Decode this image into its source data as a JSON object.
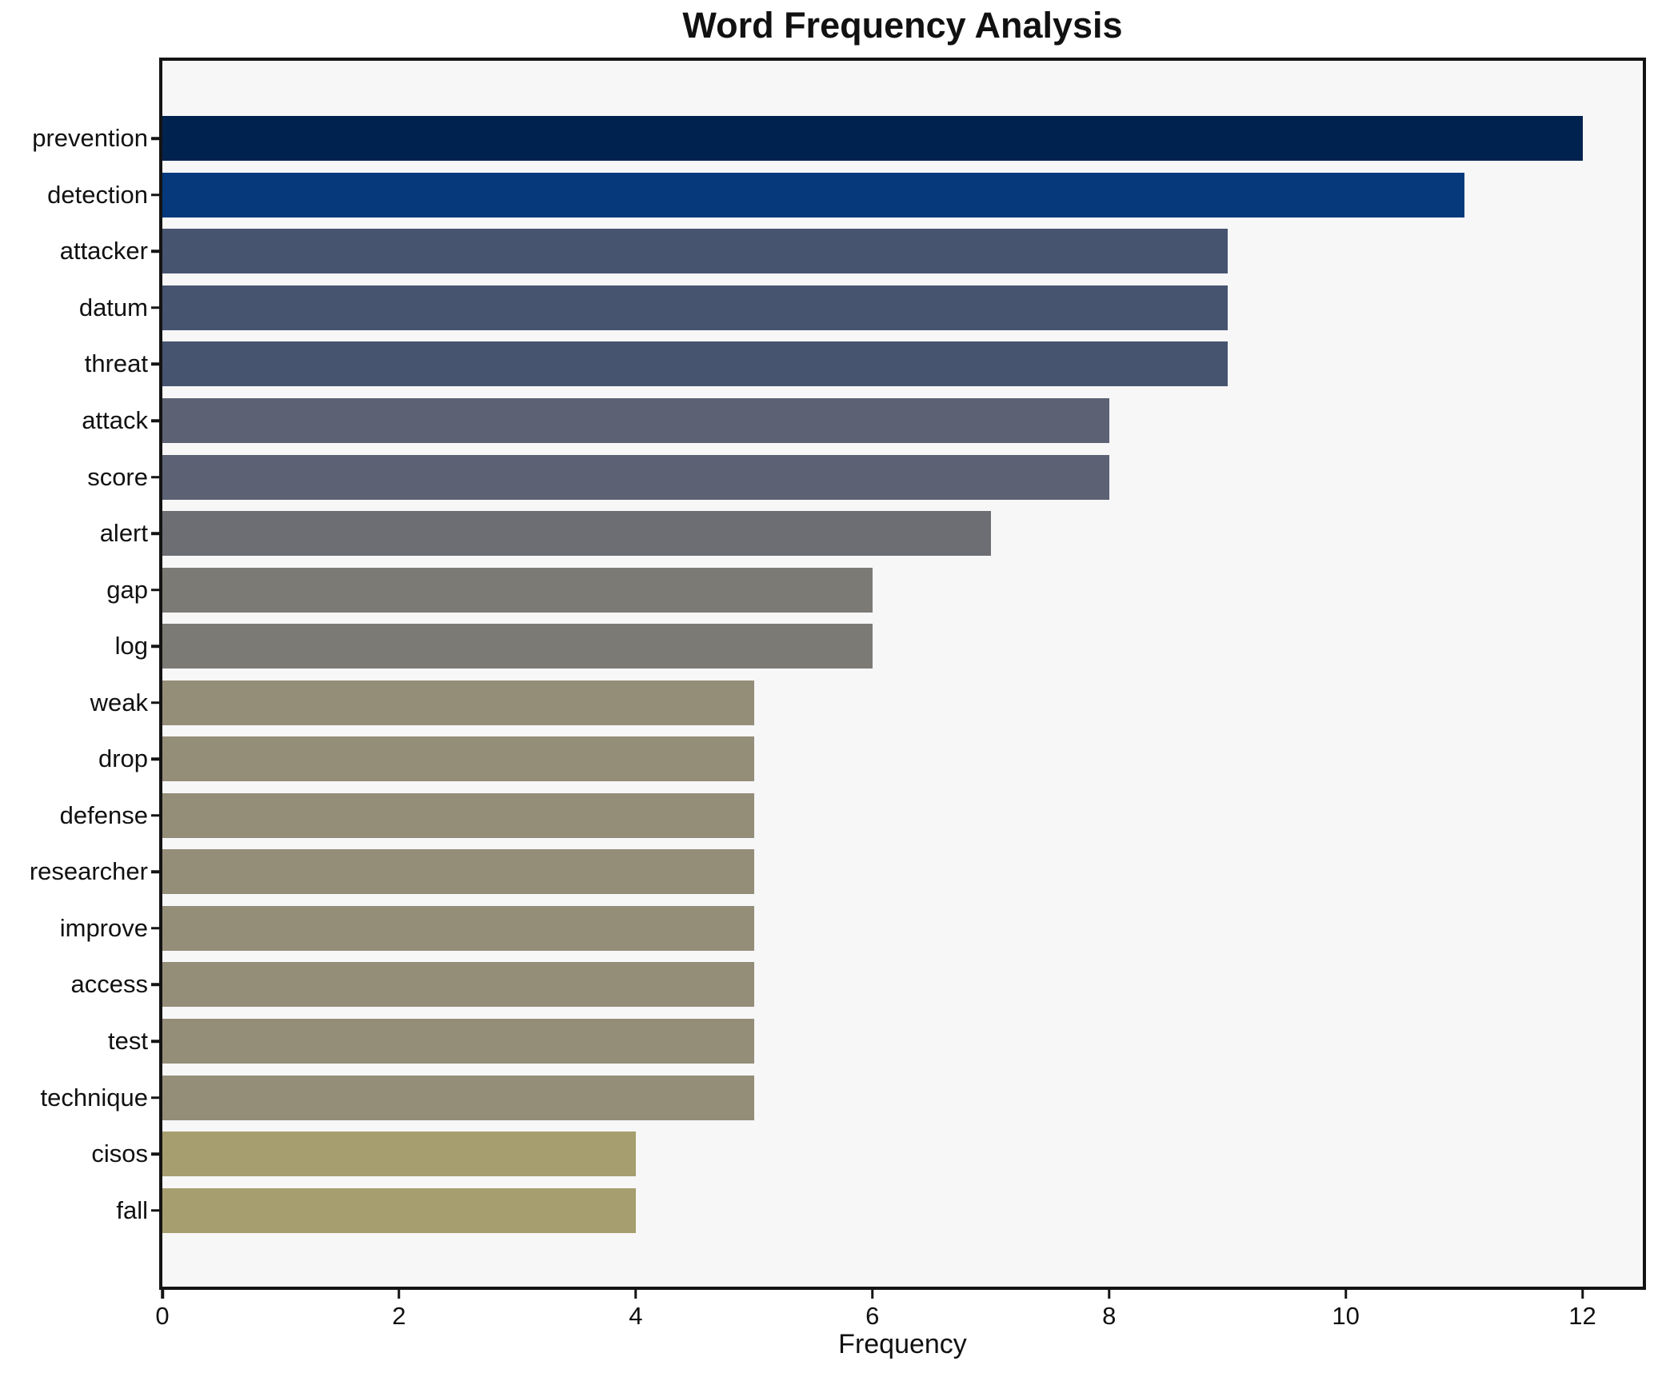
{
  "chart_data": {
    "type": "bar",
    "orientation": "horizontal",
    "title": "Word Frequency Analysis",
    "xlabel": "Frequency",
    "ylabel": "",
    "categories": [
      "prevention",
      "detection",
      "attacker",
      "datum",
      "threat",
      "attack",
      "score",
      "alert",
      "gap",
      "log",
      "weak",
      "drop",
      "defense",
      "researcher",
      "improve",
      "access",
      "test",
      "technique",
      "cisos",
      "fall"
    ],
    "values": [
      12,
      11,
      9,
      9,
      9,
      8,
      8,
      7,
      6,
      6,
      5,
      5,
      5,
      5,
      5,
      5,
      5,
      5,
      4,
      4
    ],
    "bar_colors": [
      "#00224e",
      "#05397b",
      "#475470",
      "#475470",
      "#475470",
      "#5c6274",
      "#5c6274",
      "#6d6e74",
      "#7c7a74",
      "#7c7a74",
      "#948d78",
      "#948d78",
      "#948d78",
      "#948d78",
      "#948d78",
      "#948d78",
      "#948d78",
      "#948d78",
      "#a69e6e",
      "#a69e6e"
    ],
    "xticks": [
      0,
      2,
      4,
      6,
      8,
      10,
      12
    ],
    "xlim": [
      0,
      12.51
    ],
    "grid": false,
    "legend": null,
    "plot_background": "#f7f7f8",
    "figure_background": "#ffffff",
    "spine_color": "#141414"
  }
}
